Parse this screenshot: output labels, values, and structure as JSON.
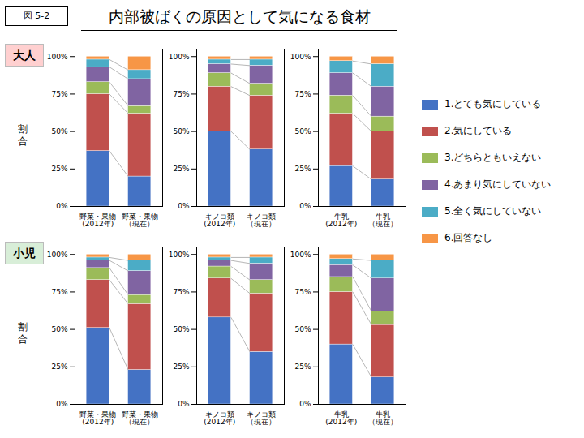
{
  "chart_data": [
    {
      "type": "bar",
      "stacked": true,
      "title": "内部被ばくの原因として気になる食材",
      "annotations": [
        {
          "text": "図 5-2"
        },
        {
          "text": "大人",
          "color": "#FFD0D0"
        }
      ],
      "ylabel": "割\n合",
      "categories": [
        "野菜・果物\n(2012年)",
        "野菜・果物\n（現在）"
      ],
      "series": [
        {
          "name": "1.とても気にしている",
          "color": "#4472C4",
          "values": [
            37,
            20
          ]
        },
        {
          "name": "2.気にしている",
          "color": "#C0504D",
          "values": [
            38,
            42
          ]
        },
        {
          "name": "3.どちらともいえない",
          "color": "#9BBB59",
          "values": [
            8,
            5
          ]
        },
        {
          "name": "4.あまり気にしていない",
          "color": "#8064A2",
          "values": [
            10,
            18
          ]
        },
        {
          "name": "5.全く気にしていない",
          "color": "#4BACC6",
          "values": [
            5,
            6
          ]
        },
        {
          "name": "6.回答なし",
          "color": "#F79646",
          "values": [
            2,
            9
          ]
        }
      ],
      "ylim": [
        0,
        105
      ],
      "yticks": [
        {
          "value": 0,
          "label": "0%"
        },
        {
          "value": 25,
          "label": "25%"
        },
        {
          "value": 50,
          "label": "50%"
        },
        {
          "value": 75,
          "label": "75%"
        },
        {
          "value": 100,
          "label": "100%"
        }
      ]
    },
    {
      "type": "bar",
      "stacked": true,
      "categories": [
        "キノコ類\n(2012年)",
        "キノコ類\n（現在）"
      ],
      "series": [
        {
          "name": "1.とても気にしている",
          "color": "#4472C4",
          "values": [
            50,
            38
          ]
        },
        {
          "name": "2.気にしている",
          "color": "#C0504D",
          "values": [
            30,
            36
          ]
        },
        {
          "name": "3.どちらともいえない",
          "color": "#9BBB59",
          "values": [
            9,
            8
          ]
        },
        {
          "name": "4.あまり気にしていない",
          "color": "#8064A2",
          "values": [
            6,
            12
          ]
        },
        {
          "name": "5.全く気にしていない",
          "color": "#4BACC6",
          "values": [
            3,
            4
          ]
        },
        {
          "name": "6.回答なし",
          "color": "#F79646",
          "values": [
            2,
            2
          ]
        }
      ],
      "ylim": [
        0,
        105
      ],
      "yticks": [
        {
          "value": 0,
          "label": "0%"
        },
        {
          "value": 25,
          "label": "25%"
        },
        {
          "value": 50,
          "label": "50%"
        },
        {
          "value": 75,
          "label": "75%"
        },
        {
          "value": 100,
          "label": "100%"
        }
      ]
    },
    {
      "type": "bar",
      "stacked": true,
      "categories": [
        "牛乳\n(2012年)",
        "牛乳\n（現在）"
      ],
      "series": [
        {
          "name": "1.とても気にしている",
          "color": "#4472C4",
          "values": [
            27,
            18
          ]
        },
        {
          "name": "2.気にしている",
          "color": "#C0504D",
          "values": [
            35,
            32
          ]
        },
        {
          "name": "3.どちらともいえない",
          "color": "#9BBB59",
          "values": [
            12,
            10
          ]
        },
        {
          "name": "4.あまり気にしていない",
          "color": "#8064A2",
          "values": [
            15,
            20
          ]
        },
        {
          "name": "5.全く気にしていない",
          "color": "#4BACC6",
          "values": [
            8,
            15
          ]
        },
        {
          "name": "6.回答なし",
          "color": "#F79646",
          "values": [
            3,
            5
          ]
        }
      ],
      "ylim": [
        0,
        105
      ],
      "yticks": [
        {
          "value": 0,
          "label": "0%"
        },
        {
          "value": 25,
          "label": "25%"
        },
        {
          "value": 50,
          "label": "50%"
        },
        {
          "value": 75,
          "label": "75%"
        },
        {
          "value": 100,
          "label": "100%"
        }
      ]
    },
    {
      "type": "bar",
      "stacked": true,
      "annotations": [
        {
          "text": "小児",
          "color": "#D8EED8"
        }
      ],
      "ylabel": "割\n合",
      "categories": [
        "野菜・果物\n(2012年)",
        "野菜・果物\n（現在）"
      ],
      "series": [
        {
          "name": "1.とても気にしている",
          "color": "#4472C4",
          "values": [
            51,
            23
          ]
        },
        {
          "name": "2.気にしている",
          "color": "#C0504D",
          "values": [
            32,
            44
          ]
        },
        {
          "name": "3.どちらともいえない",
          "color": "#9BBB59",
          "values": [
            8,
            6
          ]
        },
        {
          "name": "4.あまり気にしていない",
          "color": "#8064A2",
          "values": [
            5,
            16
          ]
        },
        {
          "name": "5.全く気にしていない",
          "color": "#4BACC6",
          "values": [
            2,
            7
          ]
        },
        {
          "name": "6.回答なし",
          "color": "#F79646",
          "values": [
            2,
            4
          ]
        }
      ],
      "ylim": [
        0,
        105
      ],
      "yticks": [
        {
          "value": 0,
          "label": "0%"
        },
        {
          "value": 25,
          "label": "25%"
        },
        {
          "value": 50,
          "label": "50%"
        },
        {
          "value": 75,
          "label": "75%"
        },
        {
          "value": 100,
          "label": "100%"
        }
      ]
    },
    {
      "type": "bar",
      "stacked": true,
      "categories": [
        "キノコ類\n(2012年)",
        "キノコ類\n（現在）"
      ],
      "series": [
        {
          "name": "1.とても気にしている",
          "color": "#4472C4",
          "values": [
            58,
            35
          ]
        },
        {
          "name": "2.気にしている",
          "color": "#C0504D",
          "values": [
            26,
            39
          ]
        },
        {
          "name": "3.どちらともいえない",
          "color": "#9BBB59",
          "values": [
            8,
            9
          ]
        },
        {
          "name": "4.あまり気にしていない",
          "color": "#8064A2",
          "values": [
            4,
            11
          ]
        },
        {
          "name": "5.全く気にしていない",
          "color": "#4BACC6",
          "values": [
            2,
            4
          ]
        },
        {
          "name": "6.回答なし",
          "color": "#F79646",
          "values": [
            2,
            2
          ]
        }
      ],
      "ylim": [
        0,
        105
      ],
      "yticks": [
        {
          "value": 0,
          "label": "0%"
        },
        {
          "value": 25,
          "label": "25%"
        },
        {
          "value": 50,
          "label": "50%"
        },
        {
          "value": 75,
          "label": "75%"
        },
        {
          "value": 100,
          "label": "100%"
        }
      ]
    },
    {
      "type": "bar",
      "stacked": true,
      "categories": [
        "牛乳\n(2012年)",
        "牛乳\n（現在）"
      ],
      "series": [
        {
          "name": "1.とても気にしている",
          "color": "#4472C4",
          "values": [
            40,
            18
          ]
        },
        {
          "name": "2.気にしている",
          "color": "#C0504D",
          "values": [
            35,
            35
          ]
        },
        {
          "name": "3.どちらともいえない",
          "color": "#9BBB59",
          "values": [
            10,
            9
          ]
        },
        {
          "name": "4.あまり気にしていない",
          "color": "#8064A2",
          "values": [
            8,
            22
          ]
        },
        {
          "name": "5.全く気にしていない",
          "color": "#4BACC6",
          "values": [
            4,
            12
          ]
        },
        {
          "name": "6.回答なし",
          "color": "#F79646",
          "values": [
            3,
            4
          ]
        }
      ],
      "ylim": [
        0,
        105
      ],
      "yticks": [
        {
          "value": 0,
          "label": "0%"
        },
        {
          "value": 25,
          "label": "25%"
        },
        {
          "value": 50,
          "label": "50%"
        },
        {
          "value": 75,
          "label": "75%"
        },
        {
          "value": 100,
          "label": "100%"
        }
      ]
    }
  ]
}
